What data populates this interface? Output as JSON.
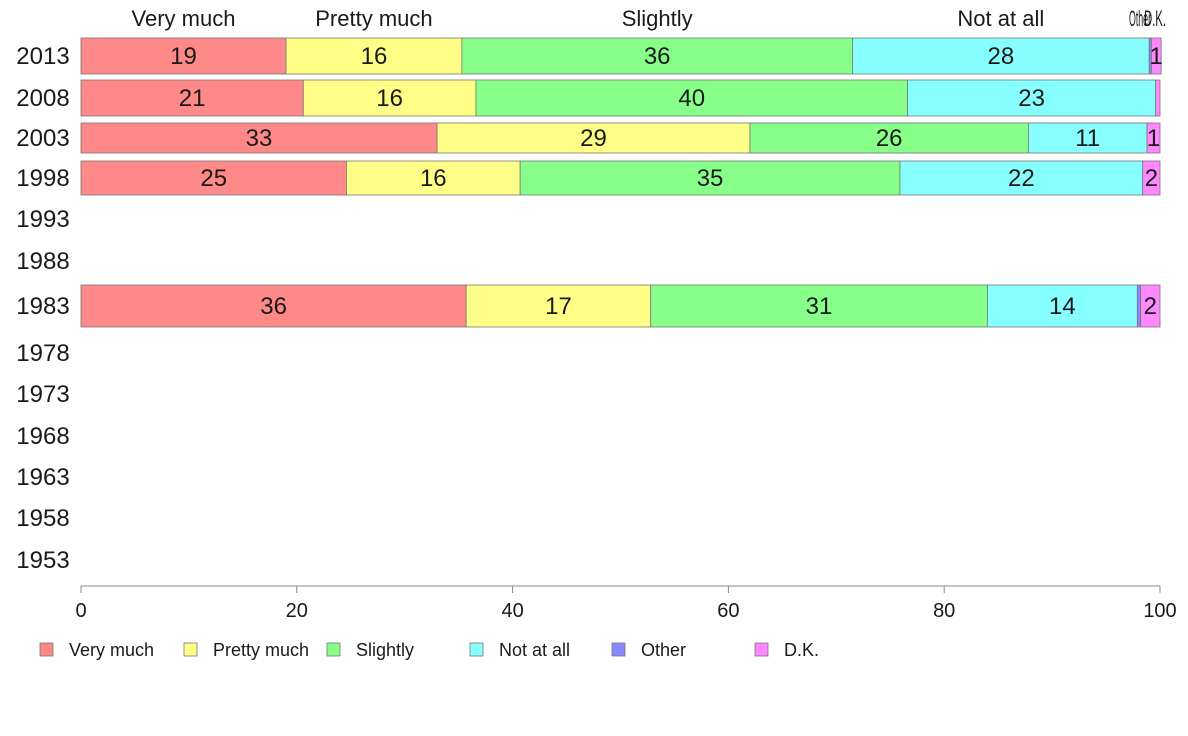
{
  "chart_data": {
    "type": "bar",
    "orientation": "horizontal",
    "stacked": true,
    "title": "",
    "xlabel": "",
    "ylabel": "",
    "xlim": [
      0,
      100
    ],
    "x_ticks": [
      "0",
      "20",
      "40",
      "60",
      "80",
      "100"
    ],
    "categories": [
      "2013",
      "2008",
      "2003",
      "1998",
      "1993",
      "1988",
      "1983",
      "1978",
      "1973",
      "1968",
      "1963",
      "1958",
      "1953"
    ],
    "top_labels": [
      "Very much",
      "Pretty much",
      "Slightly",
      "Not at all",
      "Other",
      "D.K."
    ],
    "series": [
      {
        "name": "Very much",
        "color": "#ff8888",
        "values": [
          19,
          20.6,
          33,
          24.6,
          null,
          null,
          35.7,
          null,
          null,
          null,
          null,
          null,
          null
        ],
        "labels": [
          "19",
          "21",
          "33",
          "25",
          "",
          "",
          "36",
          "",
          "",
          "",
          "",
          "",
          ""
        ]
      },
      {
        "name": "Pretty much",
        "color": "#ffff88",
        "values": [
          16.3,
          16,
          29,
          16.1,
          null,
          null,
          17.1,
          null,
          null,
          null,
          null,
          null,
          null
        ],
        "labels": [
          "16",
          "16",
          "29",
          "16",
          "",
          "",
          "17",
          "",
          "",
          "",
          "",
          "",
          ""
        ]
      },
      {
        "name": "Slightly",
        "color": "#88ff88",
        "values": [
          36.2,
          40,
          25.8,
          35.2,
          null,
          null,
          31.2,
          null,
          null,
          null,
          null,
          null,
          null
        ],
        "labels": [
          "36",
          "40",
          "26",
          "35",
          "",
          "",
          "31",
          "",
          "",
          "",
          "",
          "",
          ""
        ]
      },
      {
        "name": "Not at all",
        "color": "#88ffff",
        "values": [
          27.5,
          23,
          11,
          22.5,
          null,
          null,
          13.9,
          null,
          null,
          null,
          null,
          null,
          null
        ],
        "labels": [
          "28",
          "23",
          "11",
          "22",
          "",
          "",
          "14",
          "",
          "",
          "",
          "",
          "",
          ""
        ]
      },
      {
        "name": "Other",
        "color": "#8888ff",
        "values": [
          0.2,
          0,
          0,
          0,
          null,
          null,
          0.3,
          null,
          null,
          null,
          null,
          null,
          null
        ],
        "labels": [
          "",
          "",
          "",
          "",
          "",
          "",
          "",
          "",
          "",
          "",
          "",
          "",
          ""
        ]
      },
      {
        "name": "D.K.",
        "color": "#ff88ff",
        "values": [
          0.9,
          0.4,
          1.2,
          1.6,
          null,
          null,
          1.8,
          null,
          null,
          null,
          null,
          null,
          null
        ],
        "labels": [
          "1",
          "",
          "1",
          "2",
          "",
          "",
          "2",
          "",
          "",
          "",
          "",
          "",
          ""
        ]
      }
    ],
    "legend_position": "bottom",
    "grid": false
  }
}
